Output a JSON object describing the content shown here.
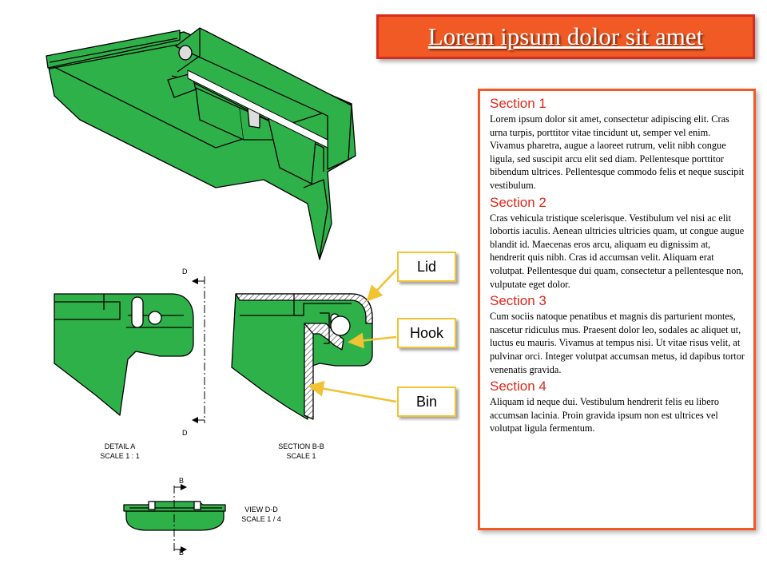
{
  "title": "Lorem ipsum dolor sit amet",
  "sections": [
    {
      "heading": "Section 1",
      "body": "Lorem ipsum dolor sit amet, consectetur adipiscing elit. Cras urna turpis, porttitor vitae tincidunt ut, semper vel enim. Vivamus pharetra, augue a laoreet rutrum, velit nibh congue ligula, sed suscipit arcu elit sed diam. Pellentesque porttitor bibendum ultrices. Pellentesque commodo felis et neque suscipit vestibulum."
    },
    {
      "heading": "Section 2",
      "body": "Cras vehicula tristique scelerisque. Vestibulum vel nisi ac elit lobortis iaculis. Aenean ultricies ultricies quam, ut congue augue blandit id. Maecenas eros arcu, aliquam eu dignissim at, hendrerit quis nibh. Cras id accumsan velit. Aliquam erat volutpat. Pellentesque dui quam, consectetur a pellentesque non, vulputate eget dolor."
    },
    {
      "heading": "Section 3",
      "body": "Cum sociis natoque penatibus et magnis dis parturient montes, nascetur ridiculus mus. Praesent dolor leo, sodales ac aliquet ut, luctus eu mauris. Vivamus at tempus nisi. Ut vitae risus velit, at pulvinar orci. Integer volutpat accumsan metus, id dapibus tortor venenatis gravida."
    },
    {
      "heading": "Section 4",
      "body": "Aliquam id neque dui. Vestibulum hendrerit felis eu libero accumsan lacinia. Proin gravida ipsum non est ultrices vel volutpat ligula fermentum."
    }
  ],
  "callouts": {
    "lid": "Lid",
    "hook": "Hook",
    "bin": "Bin"
  },
  "drawing": {
    "detail_a": {
      "line1": "DETAIL  A",
      "line2": "SCALE 1 : 1"
    },
    "section_bb": {
      "line1": "SECTION B-B",
      "line2": "SCALE 1"
    },
    "view_dd": {
      "line1": "VIEW D-D",
      "line2": "SCALE 1 / 4"
    },
    "marker_d": "D",
    "marker_b": "B"
  },
  "colors": {
    "part_green": "#2fb14a",
    "title_bg": "#f15a24",
    "heading_red": "#e0281a",
    "callout_border": "#f1c232"
  }
}
